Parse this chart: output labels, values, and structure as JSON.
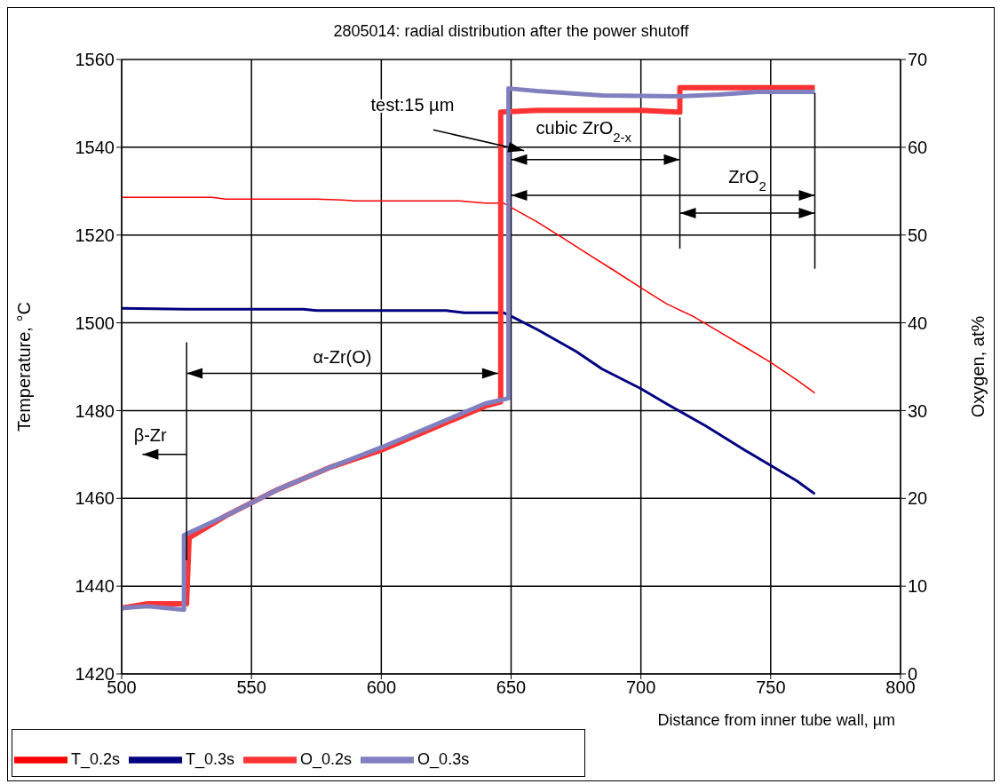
{
  "chart_data": {
    "type": "line",
    "title": "2805014: radial distribution after the power shutoff",
    "xlabel": "Distance from inner tube wall, µm",
    "ylabel": "Temperature, °C",
    "y2label": "Oxygen, at%",
    "annotations": [
      "test:15 µm",
      "cubic ZrO$_{2-x}$",
      "ZrO$_{2}$",
      "α-Zr(O)",
      "β-Zr"
    ],
    "xlim": [
      500,
      800
    ],
    "xticks": [
      500,
      550,
      600,
      650,
      700,
      750,
      800
    ],
    "ylim": [
      1420,
      1560
    ],
    "yticks": [
      1420,
      1440,
      1460,
      1480,
      1500,
      1520,
      1540,
      1560
    ],
    "y2lim": [
      0,
      70
    ],
    "y2ticks": [
      0,
      10,
      20,
      30,
      40,
      50,
      60,
      70
    ],
    "grid": true,
    "legend": "bottom",
    "marker": "none",
    "line_style": "solid",
    "series": [
      {
        "name": "T_0.2s",
        "color": "#ff0000",
        "x": [
          500,
          525,
          535,
          540,
          575,
          585,
          590,
          630,
          640,
          647,
          650,
          660,
          670,
          680,
          690,
          700,
          710,
          720,
          730,
          740,
          750,
          760,
          767
        ],
        "values": [
          1528.6,
          1528.6,
          1528.6,
          1528.2,
          1528.2,
          1528.0,
          1527.8,
          1527.8,
          1527.3,
          1527.3,
          1526.3,
          1523,
          1519.3,
          1515.5,
          1511.8,
          1508,
          1504.3,
          1501.5,
          1498,
          1494.5,
          1491,
          1487,
          1484
        ]
      },
      {
        "name": "T_0.3s",
        "color": "#000080",
        "x": [
          500,
          525,
          570,
          575,
          625,
          632,
          647,
          650,
          660,
          675,
          685,
          700,
          710,
          725,
          740,
          750,
          760,
          767
        ],
        "values": [
          1503.3,
          1503.1,
          1503.1,
          1502.8,
          1502.8,
          1502.3,
          1502.3,
          1501.5,
          1498.5,
          1493.5,
          1489.5,
          1485,
          1481.5,
          1476.5,
          1471,
          1467.5,
          1464,
          1461
        ]
      },
      {
        "name": "O_0.2s",
        "color": "#ff3333",
        "axis": "y2",
        "x": [
          500,
          510,
          525,
          526,
          540,
          560,
          580,
          600,
          620,
          640,
          646,
          646,
          660,
          700,
          715,
          715,
          767
        ],
        "values": [
          7.5,
          8,
          8,
          15.5,
          18,
          21,
          23.5,
          25.5,
          28,
          30.5,
          31,
          64,
          64.2,
          64.2,
          64,
          66.8,
          66.8
        ]
      },
      {
        "name": "O_0.3s",
        "color": "#8080c0",
        "axis": "y2",
        "x": [
          500,
          510,
          524,
          524,
          540,
          560,
          580,
          600,
          620,
          640,
          649,
          649,
          660,
          685,
          715,
          730,
          745,
          767
        ],
        "values": [
          7.5,
          7.7,
          7.3,
          15.8,
          18,
          21,
          23.5,
          25.8,
          28.3,
          30.8,
          31.4,
          66.7,
          66.4,
          65.9,
          65.8,
          66,
          66.3,
          66.3
        ]
      }
    ]
  }
}
